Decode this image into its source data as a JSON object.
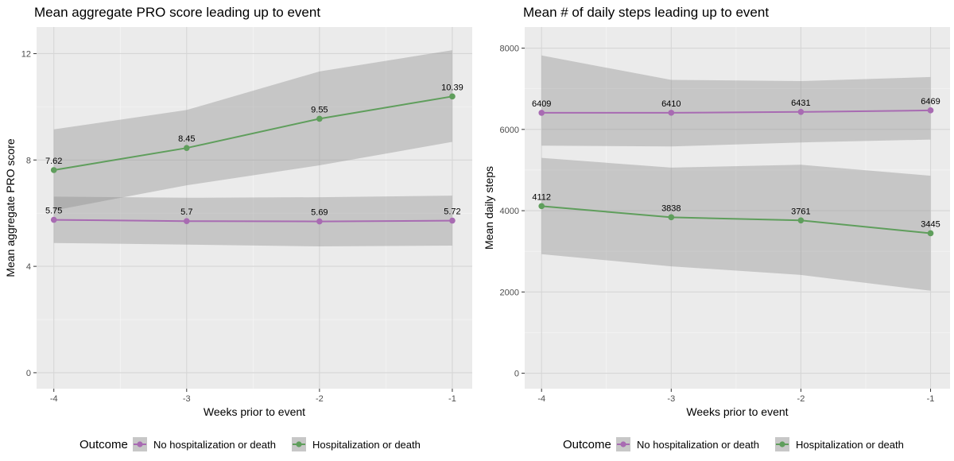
{
  "chart_data": [
    {
      "type": "line",
      "title": "Mean aggregate PRO score leading up to event",
      "xlabel": "Weeks prior to event",
      "ylabel": "Mean aggregate PRO score",
      "x": [
        -4,
        -3,
        -2,
        -1
      ],
      "xticks": [
        -4,
        -3,
        -2,
        -1
      ],
      "xlim": [
        -4.13,
        -0.85
      ],
      "yticks": [
        0,
        4,
        8,
        12
      ],
      "ylim": [
        -0.6,
        13.0
      ],
      "grid": true,
      "series": [
        {
          "name": "No hospitalization or death",
          "color": "#a86bb2",
          "values": [
            5.75,
            5.7,
            5.69,
            5.72
          ],
          "labels": [
            "5.75",
            "5.7",
            "5.69",
            "5.72"
          ],
          "lower": [
            4.88,
            4.82,
            4.75,
            4.78
          ],
          "upper": [
            6.62,
            6.58,
            6.6,
            6.66
          ]
        },
        {
          "name": "Hospitalization or death",
          "color": "#5f9e5c",
          "values": [
            7.62,
            8.45,
            9.55,
            10.39
          ],
          "labels": [
            "7.62",
            "8.45",
            "9.55",
            "10.39"
          ],
          "lower": [
            6.1,
            7.05,
            7.8,
            8.68
          ],
          "upper": [
            9.15,
            9.88,
            11.33,
            12.13
          ]
        }
      ]
    },
    {
      "type": "line",
      "title": "Mean # of daily steps leading up to event",
      "xlabel": "Weeks prior to event",
      "ylabel": "Mean daily steps",
      "x": [
        -4,
        -3,
        -2,
        -1
      ],
      "xticks": [
        -4,
        -3,
        -2,
        -1
      ],
      "xlim": [
        -4.13,
        -0.85
      ],
      "yticks": [
        0,
        2000,
        4000,
        6000,
        8000
      ],
      "ylim": [
        -380,
        8520
      ],
      "grid": true,
      "series": [
        {
          "name": "No hospitalization or death",
          "color": "#a86bb2",
          "values": [
            6409,
            6410,
            6431,
            6469
          ],
          "labels": [
            "6409",
            "6410",
            "6431",
            "6469"
          ],
          "lower": [
            5600,
            5580,
            5680,
            5750
          ],
          "upper": [
            7820,
            7220,
            7190,
            7290
          ]
        },
        {
          "name": "Hospitalization or death",
          "color": "#5f9e5c",
          "values": [
            4112,
            3838,
            3761,
            3445
          ],
          "labels": [
            "4112",
            "3838",
            "3761",
            "3445"
          ],
          "lower": [
            2930,
            2630,
            2420,
            2030
          ],
          "upper": [
            5300,
            5060,
            5130,
            4860
          ]
        }
      ]
    }
  ],
  "legend": {
    "title": "Outcome",
    "placement": "bottom"
  }
}
